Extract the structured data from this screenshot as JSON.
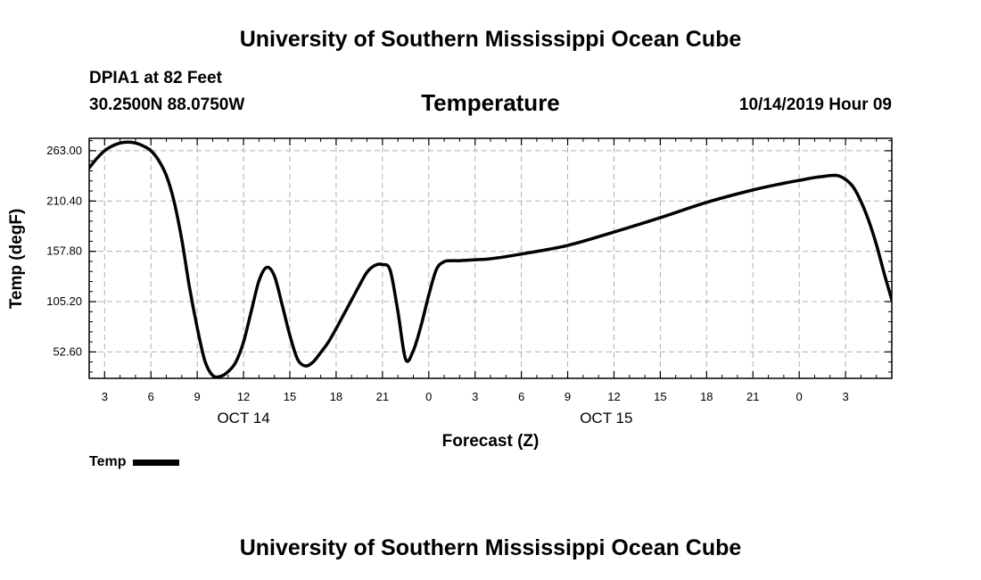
{
  "header": {
    "institution": "University of Southern Mississippi Ocean Cube",
    "station": "DPIA1 at 82 Feet",
    "coordinates": "30.2500N 88.0750W",
    "datetime": "10/14/2019 Hour 09"
  },
  "footer": {
    "institution": "University of Southern Mississippi Ocean Cube"
  },
  "legend": {
    "label": "Temp"
  },
  "chart_data": {
    "type": "line",
    "title": "Temperature",
    "xlabel": "Forecast (Z)",
    "ylabel": "Temp (degF)",
    "xlim": [
      2,
      54
    ],
    "ylim": [
      25,
      276
    ],
    "x_tick_positions": [
      3,
      6,
      9,
      12,
      15,
      18,
      21,
      24,
      27,
      30,
      33,
      36,
      39,
      42,
      45,
      48,
      51
    ],
    "x_tick_labels": [
      "3",
      "6",
      "9",
      "12",
      "15",
      "18",
      "21",
      "0",
      "3",
      "6",
      "9",
      "12",
      "15",
      "18",
      "21",
      "0",
      "3"
    ],
    "y_ticks": [
      52.6,
      105.2,
      157.8,
      210.4,
      263.0
    ],
    "y_tick_labels": [
      "52.60",
      "105.20",
      "157.80",
      "210.40",
      "263.00"
    ],
    "date_labels": [
      {
        "label": "OCT 14",
        "x": 12
      },
      {
        "label": "OCT 15",
        "x": 35.5
      }
    ],
    "grid": true,
    "series": [
      {
        "name": "Temp",
        "color": "#000000",
        "x": [
          2,
          2.5,
          3,
          3.5,
          4,
          4.5,
          5,
          5.5,
          6,
          6.5,
          7,
          7.5,
          8,
          8.5,
          9,
          9.5,
          10,
          10.5,
          11,
          11.5,
          12,
          12.5,
          13,
          13.5,
          14,
          14.5,
          15,
          15.5,
          16,
          16.5,
          17,
          17.5,
          18,
          18.5,
          19,
          19.5,
          20,
          20.5,
          21,
          21.5,
          22,
          22.5,
          23,
          23.5,
          24,
          24.5,
          25,
          25.5,
          26,
          27,
          28,
          30,
          33,
          36,
          39,
          42,
          45,
          47,
          48,
          49,
          49.5,
          50,
          50.5,
          51,
          51.5,
          52,
          52.5,
          53,
          53.5,
          54
        ],
        "values": [
          245,
          255,
          263,
          268,
          271,
          272,
          271,
          268,
          263,
          253,
          237,
          210,
          170,
          120,
          78,
          43,
          28,
          27,
          32,
          42,
          63,
          95,
          127,
          141,
          132,
          102,
          70,
          45,
          38,
          42,
          52,
          63,
          77,
          92,
          107,
          122,
          136,
          143,
          144,
          138,
          95,
          45,
          54,
          80,
          112,
          139,
          147,
          148,
          148,
          149,
          150,
          155,
          164,
          178,
          193,
          209,
          222,
          229,
          232,
          235,
          236,
          237,
          237,
          233,
          225,
          210,
          190,
          165,
          135,
          107
        ]
      }
    ]
  }
}
